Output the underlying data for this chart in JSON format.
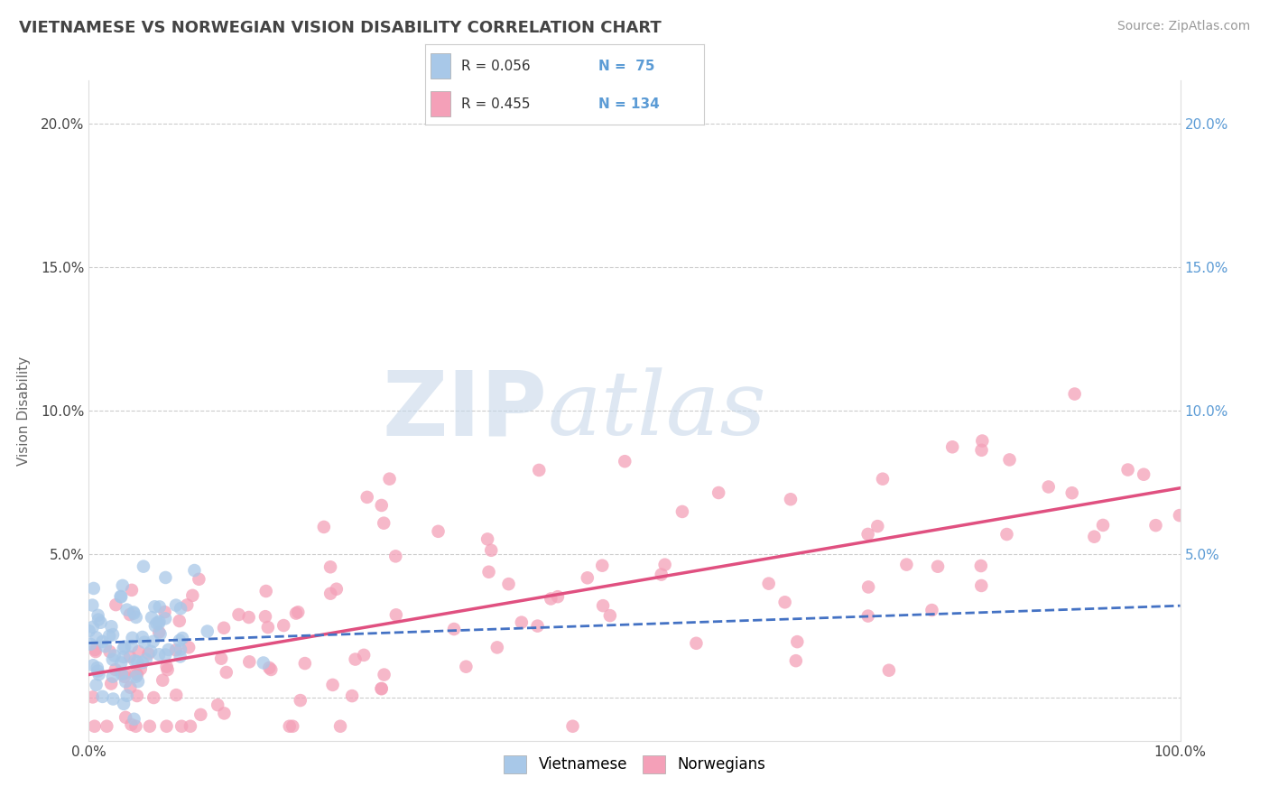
{
  "title": "VIETNAMESE VS NORWEGIAN VISION DISABILITY CORRELATION CHART",
  "source": "Source: ZipAtlas.com",
  "ylabel": "Vision Disability",
  "xlim": [
    0,
    1.0
  ],
  "ylim": [
    -0.015,
    0.215
  ],
  "x_ticks": [
    0.0,
    0.1,
    0.2,
    0.3,
    0.4,
    0.5,
    0.6,
    0.7,
    0.8,
    0.9,
    1.0
  ],
  "x_tick_labels": [
    "0.0%",
    "",
    "",
    "",
    "",
    "",
    "",
    "",
    "",
    "",
    "100.0%"
  ],
  "y_ticks": [
    0.0,
    0.05,
    0.1,
    0.15,
    0.2
  ],
  "y_tick_labels_left": [
    "",
    "5.0%",
    "10.0%",
    "15.0%",
    "20.0%"
  ],
  "y_tick_labels_right": [
    "",
    "5.0%",
    "10.0%",
    "15.0%",
    "20.0%"
  ],
  "viet_color": "#a8c8e8",
  "norw_color": "#f4a0b8",
  "viet_line_color": "#4472c4",
  "norw_line_color": "#e05080",
  "watermark_zip": "ZIP",
  "watermark_atlas": "atlas",
  "background_color": "#ffffff",
  "grid_color": "#cccccc",
  "viet_N": 75,
  "norw_N": 134,
  "norw_line_x0": 0.0,
  "norw_line_y0": 0.008,
  "norw_line_x1": 1.0,
  "norw_line_y1": 0.073,
  "viet_line_x0": 0.0,
  "viet_line_y0": 0.019,
  "viet_line_x1": 1.0,
  "viet_line_y1": 0.032
}
